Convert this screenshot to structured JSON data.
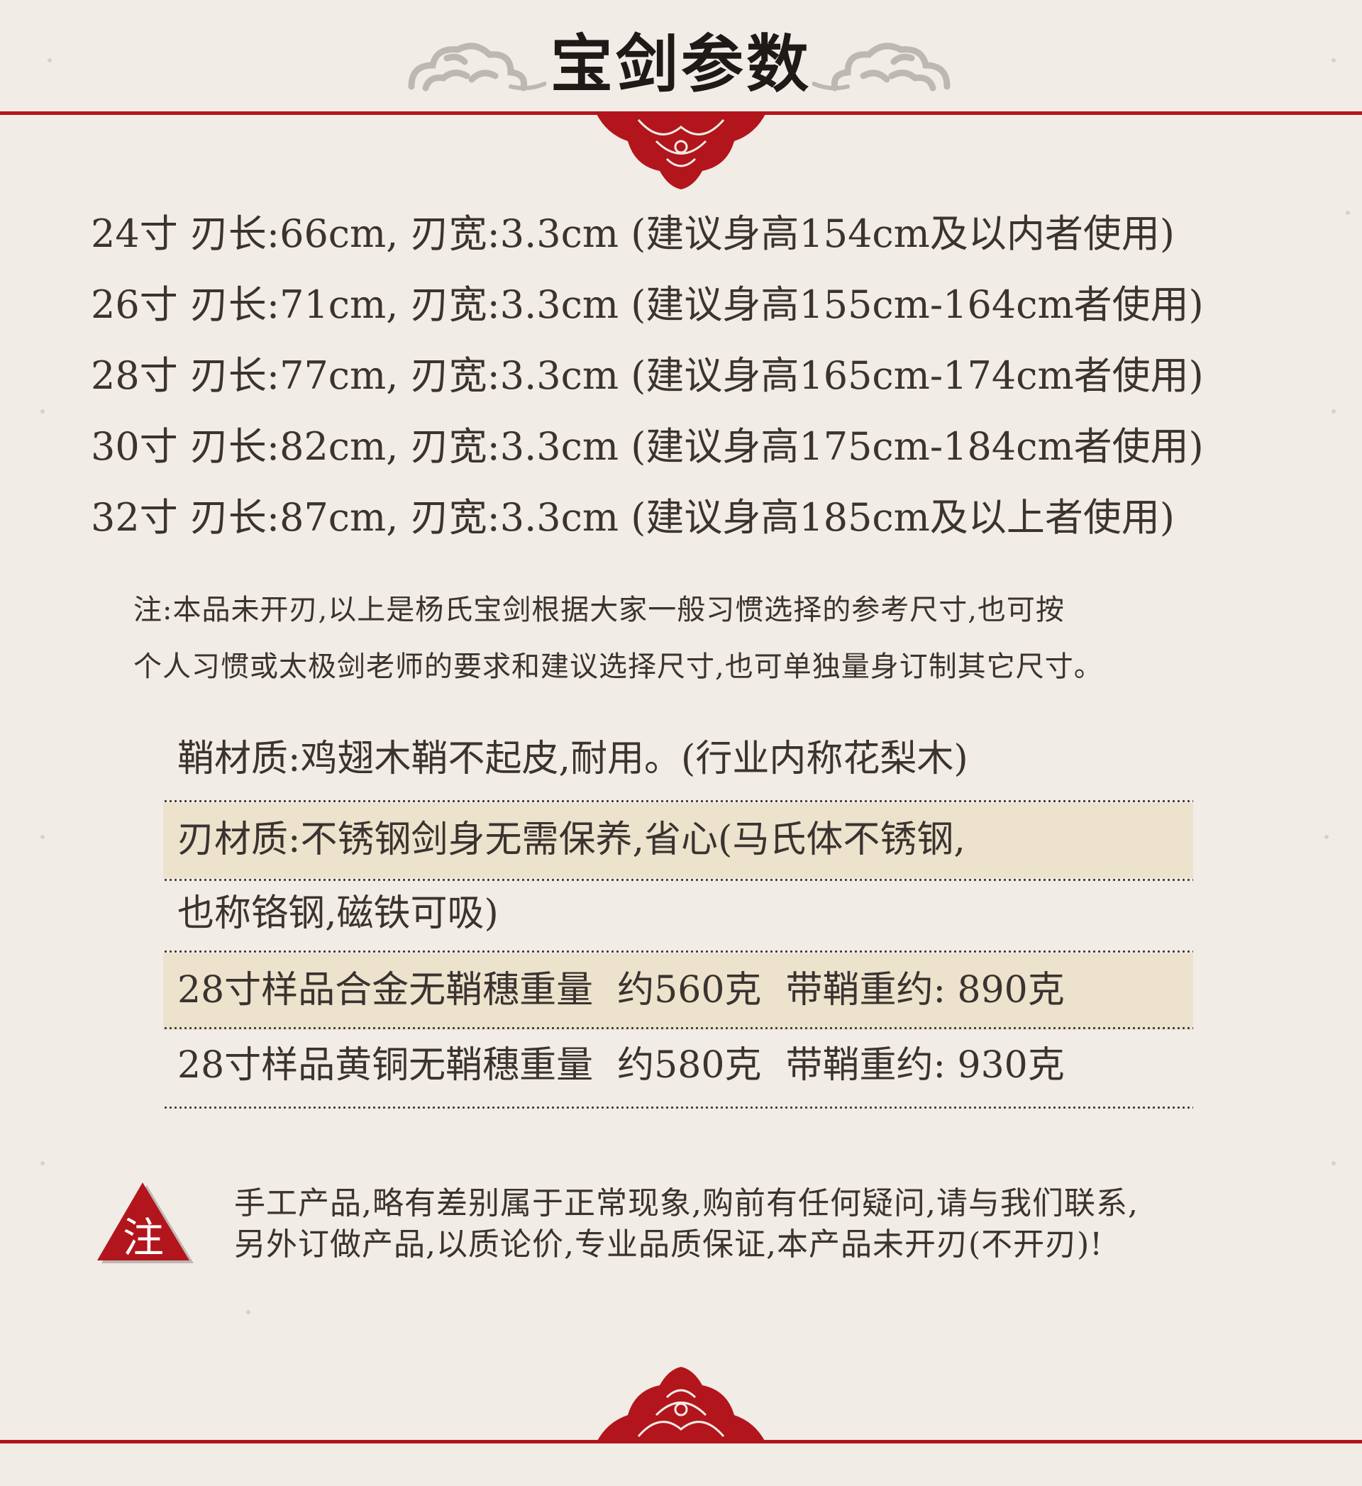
{
  "header": {
    "title": "宝剑参数"
  },
  "specs": [
    {
      "size": "24寸",
      "blade_length": "刃长:66cm,",
      "blade_width": "刃宽:3.3cm",
      "recommendation": "(建议身高154cm及以内者使用)"
    },
    {
      "size": "26寸",
      "blade_length": "刃长:71cm,",
      "blade_width": "刃宽:3.3cm",
      "recommendation": "(建议身高155cm-164cm者使用)"
    },
    {
      "size": "28寸",
      "blade_length": "刃长:77cm,",
      "blade_width": "刃宽:3.3cm",
      "recommendation": "(建议身高165cm-174cm者使用)"
    },
    {
      "size": "30寸",
      "blade_length": "刃长:82cm,",
      "blade_width": "刃宽:3.3cm",
      "recommendation": "(建议身高175cm-184cm者使用)"
    },
    {
      "size": "32寸",
      "blade_length": "刃长:87cm,",
      "blade_width": "刃宽:3.3cm",
      "recommendation": "(建议身高185cm及以上者使用)"
    }
  ],
  "note": {
    "line1": "注:本品未开刃,以上是杨氏宝剑根据大家一般习惯选择的参考尺寸,也可按",
    "line2": "个人习惯或太极剑老师的要求和建议选择尺寸,也可单独量身订制其它尺寸。"
  },
  "materials": {
    "scabbard": "鞘材质:鸡翅木鞘不起皮,耐用。(行业内称花梨木)",
    "blade_line1": "刃材质:不锈钢剑身无需保养,省心(马氏体不锈钢,",
    "blade_line2": "也称铬钢,磁铁可吸)",
    "alloy_sample": "28寸样品合金无鞘穗重量",
    "alloy_weight": "约560克",
    "alloy_with_scabbard": "带鞘重约: 890克",
    "brass_sample": "28寸样品黄铜无鞘穗重量",
    "brass_weight": "约580克",
    "brass_with_scabbard": "带鞘重约: 930克"
  },
  "warning": {
    "icon_label": "注",
    "line1": "手工产品,略有差别属于正常现象,购前有任何疑问,请与我们联系,",
    "line2": "另外订做产品,以质论价,专业品质保证,本产品未开刃(不开刃)!"
  },
  "colors": {
    "accent_red": "#b3151c",
    "background": "#f1ece6",
    "row_shade": "#ede2cc",
    "text": "#3a3330"
  }
}
